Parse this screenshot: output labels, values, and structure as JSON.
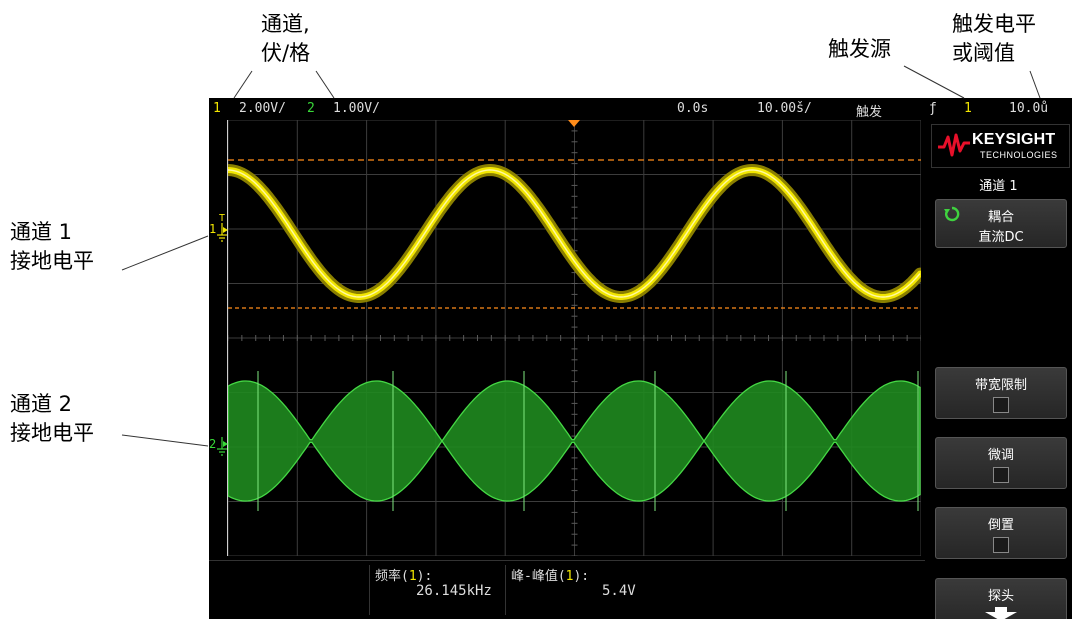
{
  "callouts": {
    "channel_scale": [
      "通道,",
      "伏/格"
    ],
    "trigger_source": "触发源",
    "trigger_level": [
      "触发电平",
      "或阈值"
    ],
    "ch1_ground": [
      "通道 1",
      "接地电平"
    ],
    "ch2_ground": [
      "通道 2",
      "接地电平"
    ]
  },
  "status_bar": {
    "ch1_num": "1",
    "ch1_scale": "2.00V/",
    "ch2_num": "2",
    "ch2_scale": "1.00V/",
    "time_delay": "0.0s",
    "time_scale": "10.00š/",
    "trigger_label": "触发",
    "trigger_edge": "ƒ",
    "trigger_source": "1",
    "trigger_level": "10.0ů"
  },
  "markers": {
    "ch1_marker": "1",
    "ch1_trigger_mark": "T",
    "ch2_marker": "2"
  },
  "softkeys": {
    "brand": "KEYSIGHT",
    "brand_sub": "TECHNOLOGIES",
    "menu_title": "通道 1",
    "coupling_label": "耦合",
    "coupling_value": "直流DC",
    "bw_limit_label": "带宽限制",
    "fine_label": "微调",
    "invert_label": "倒置",
    "probe_label": "探头"
  },
  "measurements": {
    "freq_label": "频率(",
    "freq_src": "1",
    "freq_close": "):",
    "freq_value": "26.145kHz",
    "pp_label": "峰-峰值(",
    "pp_src": "1",
    "pp_close": "):",
    "pp_value": "5.4V"
  },
  "colors": {
    "ch1": "#f2e600",
    "ch2": "#38d838",
    "trigger": "#ff8c1a",
    "grid": "#3c3c3c"
  },
  "icons": {
    "coupling": "cycle-arrow-icon",
    "probe": "down-arrow-icon",
    "logo": "keysight-wave-icon",
    "ground": "ground-icon"
  }
}
